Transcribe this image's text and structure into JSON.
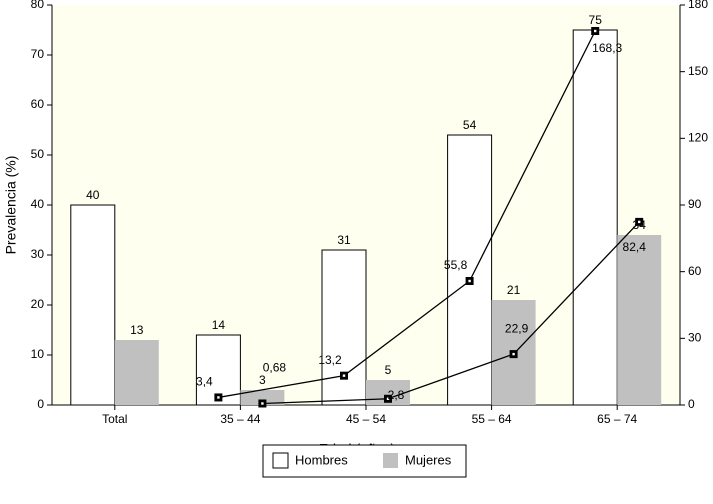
{
  "chart_data": {
    "type": "bar",
    "categories": [
      "Total",
      "35 – 44",
      "45 – 54",
      "55 – 64",
      "65 – 74"
    ],
    "xlabel": "Edad (años)",
    "ylabel": "Prevalencia (%)",
    "ylim": [
      0,
      80
    ],
    "yticks": [
      0,
      10,
      20,
      30,
      40,
      50,
      60,
      70,
      80
    ],
    "y2lim": [
      0,
      180
    ],
    "y2ticks": [
      0,
      30,
      60,
      90,
      120,
      150,
      180
    ],
    "series": [
      {
        "name": "Hombres",
        "color": "#ffffff",
        "values": [
          40,
          14,
          31,
          54,
          75
        ]
      },
      {
        "name": "Mujeres",
        "color": "#c0c0c0",
        "values": [
          13,
          3,
          5,
          21,
          34
        ]
      },
      {
        "type": "line",
        "axis": "y2",
        "color": "#000000",
        "values": [
          null,
          3.4,
          13.2,
          55.8,
          168.3
        ],
        "value_labels": [
          null,
          "3,4",
          "13,2",
          "55,8",
          "168,3"
        ]
      },
      {
        "type": "line",
        "axis": "y2",
        "color": "#000000",
        "values": [
          null,
          0.68,
          2.8,
          22.9,
          82.4
        ],
        "value_labels": [
          null,
          "0,68",
          "2,8",
          "22,9",
          "82,4"
        ]
      }
    ],
    "legend": "bottom"
  }
}
